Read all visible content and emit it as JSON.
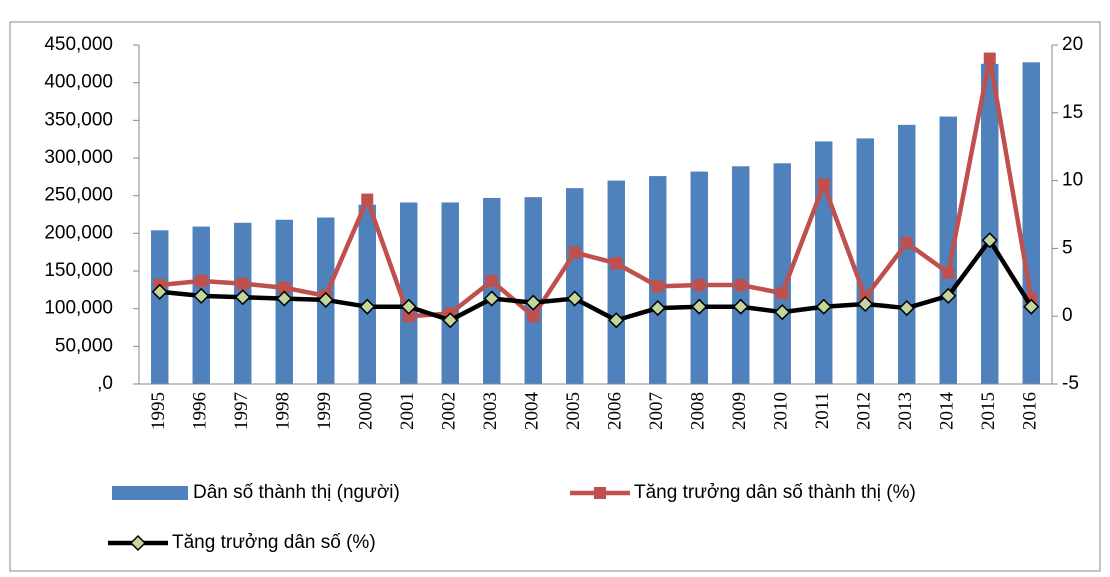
{
  "chart_data": {
    "type": "bar_line_combo",
    "categories": [
      "1995",
      "1996",
      "1997",
      "1998",
      "1999",
      "2000",
      "2001",
      "2002",
      "2003",
      "2004",
      "2005",
      "2006",
      "2007",
      "2008",
      "2009",
      "2010",
      "2011",
      "2012",
      "2013",
      "2014",
      "2015",
      "2016"
    ],
    "series": [
      {
        "name": "Dân số thành thị (người)",
        "type": "bar",
        "color": "#4f81bd",
        "values": [
          204000,
          209000,
          214000,
          218000,
          221000,
          238000,
          241000,
          241000,
          247000,
          248000,
          260000,
          270000,
          276000,
          282000,
          289000,
          293000,
          322000,
          326000,
          344000,
          355000,
          425000,
          427000
        ]
      },
      {
        "name": "Tăng trưởng dân số thành thị (%)",
        "type": "line",
        "axis": "y2",
        "color": "#c0504d",
        "marker": "square",
        "values": [
          2.3,
          2.6,
          2.4,
          2.1,
          1.5,
          8.6,
          0.0,
          0.2,
          2.6,
          0.0,
          4.7,
          3.9,
          2.2,
          2.3,
          2.3,
          1.7,
          9.7,
          1.4,
          5.4,
          3.2,
          19.0,
          1.3
        ]
      },
      {
        "name": "Tăng trưởng dân số (%)",
        "type": "line",
        "axis": "y2",
        "color": "#000000",
        "marker": "diamond",
        "marker_color": "#c3d69b",
        "values": [
          1.8,
          1.5,
          1.4,
          1.3,
          1.2,
          0.7,
          0.7,
          -0.3,
          1.3,
          1.0,
          1.3,
          -0.3,
          0.6,
          0.7,
          0.7,
          0.3,
          0.7,
          0.9,
          0.6,
          1.5,
          5.6,
          0.7
        ]
      }
    ],
    "ylim": [
      0,
      450000
    ],
    "yticks": [
      {
        "value": 0,
        "label": ",0"
      },
      {
        "value": 50000,
        "label": "50,000"
      },
      {
        "value": 100000,
        "label": "100,000"
      },
      {
        "value": 150000,
        "label": "150,000"
      },
      {
        "value": 200000,
        "label": "200,000"
      },
      {
        "value": 250000,
        "label": "250,000"
      },
      {
        "value": 300000,
        "label": "300,000"
      },
      {
        "value": 350000,
        "label": "350,000"
      },
      {
        "value": 400000,
        "label": "400,000"
      },
      {
        "value": 450000,
        "label": "450,000"
      }
    ],
    "y2lim": [
      -5,
      20
    ],
    "y2ticks": [
      -5,
      0,
      5,
      10,
      15,
      20
    ],
    "legend": "bottom"
  }
}
